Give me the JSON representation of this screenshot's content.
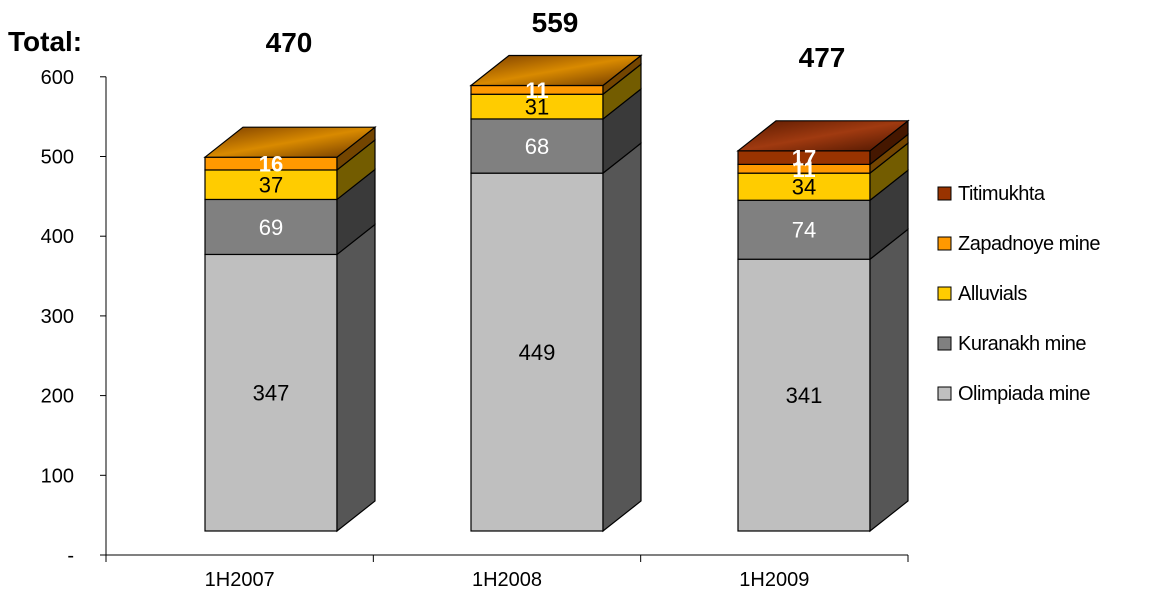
{
  "chart_data": {
    "type": "bar",
    "stacked": true,
    "three_d": true,
    "categories": [
      "1H2007",
      "1H2008",
      "1H2009"
    ],
    "series": [
      {
        "name": "Olimpiada mine",
        "values": [
          347,
          449,
          341
        ],
        "color": "#bfbfbf",
        "label_color": "#000000"
      },
      {
        "name": "Kuranakh mine",
        "values": [
          69,
          68,
          74
        ],
        "color": "#808080",
        "label_color": "#ffffff"
      },
      {
        "name": "Alluvials",
        "values": [
          37,
          31,
          34
        ],
        "color": "#ffcc00",
        "label_color": "#000000"
      },
      {
        "name": "Zapadnoye mine",
        "values": [
          16,
          11,
          11
        ],
        "color": "#ff9900",
        "label_color": "#ffffff"
      },
      {
        "name": "Titimukhta",
        "values": [
          null,
          null,
          17
        ],
        "color": "#993300",
        "label_color": "#ffffff"
      }
    ],
    "totals_label": "Total:",
    "totals": [
      "470",
      "559",
      "477"
    ],
    "yticks": [
      "-",
      "100",
      "200",
      "300",
      "400",
      "500",
      "600"
    ],
    "ylim": [
      0,
      600
    ],
    "legend_position": "right",
    "grid": false
  }
}
